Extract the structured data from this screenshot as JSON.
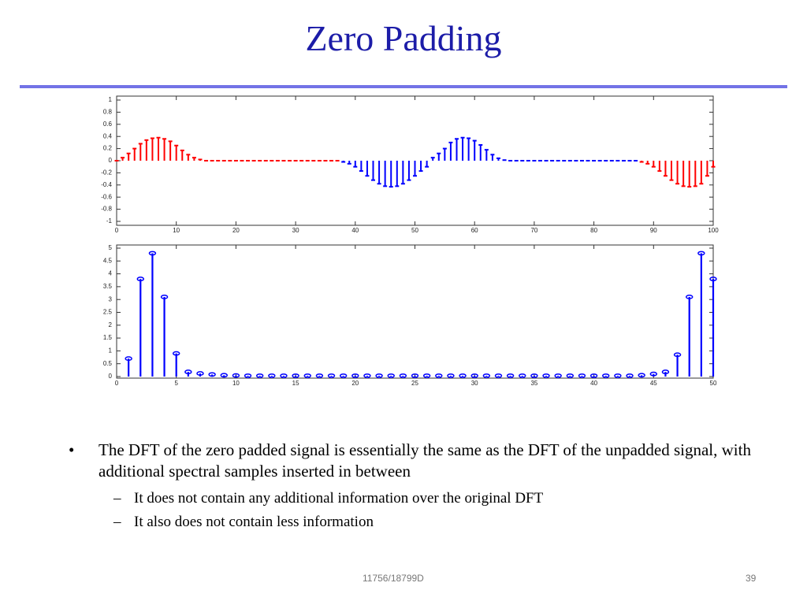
{
  "title": "Zero Padding",
  "bullets": [
    {
      "text": "The DFT of the zero padded signal is essentially the same as the DFT of the unpadded signal, with additional spectral samples inserted in between",
      "sub": [
        "It does not contain any additional information over the original DFT",
        "It also does not contain less information"
      ]
    }
  ],
  "footer": {
    "course": "11756/18799D",
    "page": "39"
  },
  "chart_data": [
    {
      "type": "stem",
      "marker": "dot",
      "xlim": [
        0,
        100
      ],
      "xticks": [
        0,
        10,
        20,
        30,
        40,
        50,
        60,
        70,
        80,
        90,
        100
      ],
      "ylim": [
        -1,
        1
      ],
      "yticks": [
        -1,
        -0.8,
        -0.6,
        -0.4,
        -0.2,
        0,
        0.2,
        0.4,
        0.6,
        0.8,
        1
      ],
      "series": [
        {
          "color": "#ff0000",
          "x": [
            0,
            1,
            2,
            3,
            4,
            5,
            6,
            7,
            8,
            9,
            10,
            11,
            12,
            13,
            14,
            15,
            16,
            17,
            18,
            19,
            20,
            21,
            22,
            23,
            24,
            25,
            26,
            27,
            28,
            29,
            30,
            31,
            32,
            33,
            34,
            35,
            36,
            37,
            88,
            89,
            90,
            91,
            92,
            93,
            94,
            95,
            96,
            97,
            98,
            99,
            100
          ],
          "values": [
            0,
            0.05,
            0.12,
            0.2,
            0.28,
            0.34,
            0.37,
            0.38,
            0.36,
            0.32,
            0.25,
            0.17,
            0.1,
            0.05,
            0.02,
            0,
            0,
            0,
            0,
            0,
            0,
            0,
            0,
            0,
            0,
            0,
            0,
            0,
            0,
            0,
            0,
            0,
            0,
            0,
            0,
            0,
            0,
            0,
            -0.02,
            -0.05,
            -0.1,
            -0.17,
            -0.25,
            -0.32,
            -0.38,
            -0.42,
            -0.43,
            -0.42,
            -0.38,
            -0.25,
            -0.1
          ]
        },
        {
          "color": "#0000ff",
          "x": [
            38,
            39,
            40,
            41,
            42,
            43,
            44,
            45,
            46,
            47,
            48,
            49,
            50,
            51,
            52,
            53,
            54,
            55,
            56,
            57,
            58,
            59,
            60,
            61,
            62,
            63,
            64,
            65,
            66,
            67,
            68,
            69,
            70,
            71,
            72,
            73,
            74,
            75,
            76,
            77,
            78,
            79,
            80,
            81,
            82,
            83,
            84,
            85,
            86,
            87
          ],
          "values": [
            -0.02,
            -0.05,
            -0.1,
            -0.17,
            -0.25,
            -0.32,
            -0.38,
            -0.42,
            -0.43,
            -0.42,
            -0.38,
            -0.32,
            -0.25,
            -0.17,
            -0.1,
            0.05,
            0.12,
            0.2,
            0.3,
            0.36,
            0.38,
            0.37,
            0.33,
            0.26,
            0.18,
            0.1,
            0.04,
            0.01,
            0,
            0,
            0,
            0,
            0,
            0,
            0,
            0,
            0,
            0,
            0,
            0,
            0,
            0,
            0,
            0,
            0,
            0,
            0,
            0,
            0,
            0
          ]
        }
      ]
    },
    {
      "type": "stem",
      "marker": "circle",
      "xlim": [
        0,
        50
      ],
      "xticks": [
        0,
        5,
        10,
        15,
        20,
        25,
        30,
        35,
        40,
        45,
        50
      ],
      "ylim": [
        0,
        5
      ],
      "yticks": [
        0,
        0.5,
        1,
        1.5,
        2,
        2.5,
        3,
        3.5,
        4,
        4.5,
        5
      ],
      "series": [
        {
          "color": "#0000ff",
          "x": [
            1,
            2,
            3,
            4,
            5,
            6,
            7,
            8,
            9,
            10,
            11,
            12,
            13,
            14,
            15,
            16,
            17,
            18,
            19,
            20,
            21,
            22,
            23,
            24,
            25,
            26,
            27,
            28,
            29,
            30,
            31,
            32,
            33,
            34,
            35,
            36,
            37,
            38,
            39,
            40,
            41,
            42,
            43,
            44,
            45,
            46,
            47,
            48,
            49,
            50
          ],
          "values": [
            0.7,
            3.8,
            4.8,
            3.1,
            0.9,
            0.18,
            0.12,
            0.08,
            0.05,
            0.04,
            0.03,
            0.03,
            0.03,
            0.03,
            0.03,
            0.03,
            0.03,
            0.03,
            0.03,
            0.03,
            0.03,
            0.03,
            0.03,
            0.03,
            0.03,
            0.03,
            0.03,
            0.03,
            0.03,
            0.03,
            0.03,
            0.03,
            0.03,
            0.03,
            0.03,
            0.03,
            0.03,
            0.03,
            0.03,
            0.03,
            0.03,
            0.03,
            0.03,
            0.05,
            0.1,
            0.18,
            0.85,
            3.1,
            4.8,
            3.8
          ]
        }
      ]
    }
  ]
}
